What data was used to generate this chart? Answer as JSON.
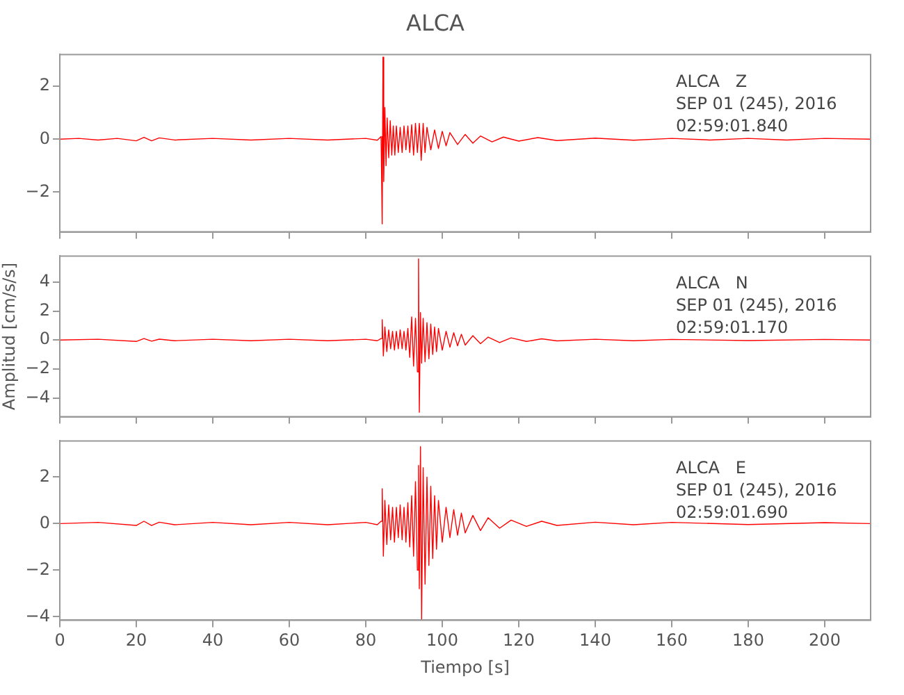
{
  "chart_data": [
    {
      "type": "line",
      "title": "ALCA",
      "annotations": [
        "ALCA   Z",
        "SEP 01 (245), 2016",
        "02:59:01.840"
      ],
      "tick_labels": "y",
      "xlim": [
        0,
        212
      ],
      "xticks": [
        0,
        20,
        40,
        60,
        80,
        100,
        120,
        140,
        160,
        180,
        200
      ],
      "ylim": [
        -3.5,
        3.2
      ],
      "yticks": [
        -2,
        0,
        2
      ],
      "x": [
        0,
        5,
        10,
        15,
        20,
        22,
        24,
        26,
        30,
        40,
        50,
        60,
        70,
        80,
        83,
        84,
        84.3,
        84.5,
        84.7,
        85,
        85.3,
        85.6,
        86,
        86.4,
        86.8,
        87.2,
        87.6,
        88,
        88.5,
        89,
        89.5,
        90,
        90.5,
        91,
        91.5,
        92,
        92.5,
        93,
        93.5,
        94,
        94.5,
        95,
        95.5,
        96,
        97,
        98,
        99,
        100,
        101,
        102,
        104,
        106,
        108,
        110,
        113,
        116,
        120,
        125,
        130,
        140,
        150,
        160,
        170,
        180,
        190,
        200,
        212
      ],
      "series": [
        {
          "color": "#ff0000",
          "values": [
            0,
            0.03,
            -0.03,
            0.03,
            -0.06,
            0.07,
            -0.06,
            0.05,
            -0.03,
            0.03,
            -0.03,
            0.03,
            -0.03,
            0.03,
            -0.04,
            0.1,
            -3.2,
            3.1,
            -1.6,
            1.2,
            -1.0,
            0.8,
            -0.7,
            0.7,
            -0.6,
            0.5,
            -0.6,
            0.5,
            -0.5,
            0.45,
            -0.5,
            0.5,
            -0.4,
            0.5,
            -0.5,
            0.55,
            -0.6,
            0.6,
            -0.5,
            0.6,
            -0.8,
            0.6,
            -0.5,
            0.45,
            -0.4,
            0.35,
            -0.35,
            0.3,
            -0.25,
            0.25,
            -0.2,
            0.18,
            -0.15,
            0.12,
            -0.1,
            0.08,
            -0.07,
            0.06,
            -0.05,
            0.04,
            -0.04,
            0.03,
            -0.03,
            0.03,
            -0.03,
            0.03,
            0
          ]
        }
      ]
    },
    {
      "type": "line",
      "ylabel": "Amplitud [cm/s/s]",
      "annotations": [
        "ALCA   N",
        "SEP 01 (245), 2016",
        "02:59:01.170"
      ],
      "tick_labels": "y",
      "xlim": [
        0,
        212
      ],
      "xticks": [
        0,
        20,
        40,
        60,
        80,
        100,
        120,
        140,
        160,
        180,
        200
      ],
      "ylim": [
        -5.3,
        5.8
      ],
      "yticks": [
        -4,
        -2,
        0,
        2,
        4
      ],
      "x": [
        0,
        10,
        20,
        22,
        24,
        26,
        30,
        40,
        50,
        60,
        70,
        80,
        83,
        84,
        84.3,
        84.6,
        85,
        85.5,
        86,
        86.5,
        87,
        87.5,
        88,
        88.5,
        89,
        89.5,
        90,
        90.5,
        91,
        91.5,
        92,
        92.5,
        93,
        93.5,
        93.8,
        94,
        94.3,
        94.6,
        95,
        95.5,
        96,
        96.5,
        97,
        97.5,
        98,
        98.5,
        99,
        100,
        101,
        102,
        103,
        104,
        105,
        106,
        108,
        110,
        112,
        115,
        118,
        122,
        126,
        130,
        140,
        150,
        160,
        180,
        200,
        212
      ],
      "series": [
        {
          "color": "#ff0000",
          "values": [
            0,
            0.05,
            -0.1,
            0.1,
            -0.08,
            0.06,
            -0.05,
            0.05,
            -0.05,
            0.05,
            -0.05,
            0.05,
            -0.05,
            0.1,
            1.4,
            -1.1,
            0.9,
            -0.8,
            0.7,
            -0.6,
            0.6,
            -0.7,
            0.6,
            -0.6,
            0.7,
            -0.6,
            0.6,
            -0.7,
            0.8,
            -1.2,
            1.6,
            -1.8,
            1.5,
            -2.2,
            5.6,
            -5.0,
            1.9,
            -1.6,
            1.5,
            -1.5,
            1.2,
            -1.3,
            1.1,
            -1.0,
            0.9,
            -0.8,
            0.8,
            -0.7,
            0.6,
            -0.5,
            0.5,
            -0.4,
            0.4,
            -0.35,
            0.3,
            -0.25,
            0.2,
            -0.18,
            0.15,
            -0.1,
            0.08,
            -0.06,
            0.05,
            -0.05,
            0.04,
            -0.04,
            0.04,
            0
          ]
        }
      ]
    },
    {
      "type": "line",
      "xlabel": "Tiempo [s]",
      "annotations": [
        "ALCA   E",
        "SEP 01 (245), 2016",
        "02:59:01.690"
      ],
      "xlim": [
        0,
        212
      ],
      "xticks": [
        0,
        20,
        40,
        60,
        80,
        100,
        120,
        140,
        160,
        180,
        200
      ],
      "ylim": [
        -4.15,
        3.55
      ],
      "yticks": [
        -4,
        -2,
        0,
        2
      ],
      "x": [
        0,
        10,
        20,
        22,
        24,
        26,
        30,
        40,
        50,
        60,
        70,
        80,
        83,
        84,
        84.3,
        84.6,
        85,
        85.5,
        86,
        86.5,
        87,
        87.5,
        88,
        88.5,
        89,
        89.5,
        90,
        90.5,
        91,
        91.5,
        92,
        92.5,
        93,
        93.5,
        93.8,
        94,
        94.3,
        94.6,
        95,
        95.5,
        96,
        96.5,
        97,
        97.5,
        98,
        98.5,
        99,
        100,
        101,
        102,
        103,
        104,
        105,
        106,
        108,
        110,
        112,
        115,
        118,
        122,
        126,
        130,
        140,
        150,
        160,
        180,
        200,
        212
      ],
      "series": [
        {
          "color": "#ff0000",
          "values": [
            0,
            0.05,
            -0.08,
            0.1,
            -0.08,
            0.06,
            -0.05,
            0.05,
            -0.05,
            0.05,
            -0.05,
            0.05,
            -0.05,
            0.1,
            1.5,
            -1.4,
            1.0,
            -0.9,
            0.8,
            -0.7,
            0.7,
            -0.8,
            0.7,
            -0.6,
            0.8,
            -0.7,
            0.7,
            -0.8,
            0.9,
            -1.0,
            1.2,
            -1.4,
            1.8,
            -2.0,
            2.5,
            -2.8,
            3.3,
            -4.1,
            2.4,
            -2.6,
            2.0,
            -1.8,
            1.6,
            -1.5,
            1.2,
            -1.1,
            1.0,
            -0.8,
            0.7,
            -0.6,
            0.6,
            -0.5,
            0.45,
            -0.4,
            0.35,
            -0.3,
            0.25,
            -0.2,
            0.15,
            -0.12,
            0.1,
            -0.08,
            0.06,
            -0.05,
            0.05,
            -0.04,
            0.04,
            0
          ]
        }
      ]
    }
  ]
}
